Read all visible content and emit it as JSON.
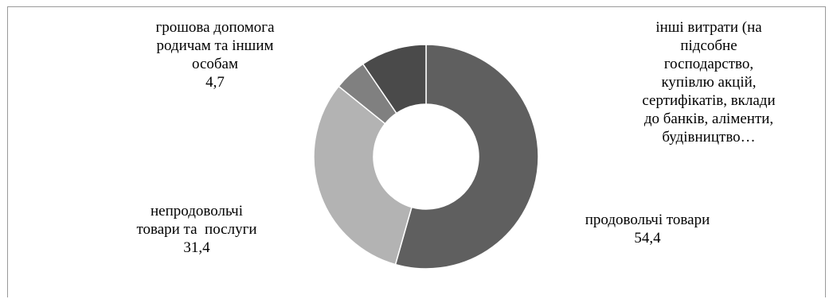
{
  "chart_data": {
    "type": "pie",
    "style": "donut",
    "legend": "none",
    "slices": [
      {
        "label": "продовольчі товари",
        "label_lines": [
          "продовольчі товари"
        ],
        "value": 54.4,
        "value_text": "54,4",
        "color": "#5f5f5f"
      },
      {
        "label": "непродовольчі товари та  послуги",
        "label_lines": [
          "непродовольчі",
          "товари та  послуги"
        ],
        "value": 31.4,
        "value_text": "31,4",
        "color": "#b3b3b3"
      },
      {
        "label": "грошова допомога родичам та іншим особам",
        "label_lines": [
          "грошова допомога",
          "родичам та іншим",
          "особам"
        ],
        "value": 4.7,
        "value_text": "4,7",
        "color": "#808080"
      },
      {
        "label": "інші витрати (на підсобне господарство, купівлю акцій, сертифікатів, вклади до банків, аліменти, будівництво…",
        "label_lines": [
          "інші витрати (на",
          "підсобне",
          "господарство,",
          "купівлю акцій,",
          "сертифікатів, вклади",
          "до банків, аліменти,",
          "будівництво…"
        ],
        "value": null,
        "value_text": "",
        "color": "#4a4a4a"
      }
    ]
  }
}
